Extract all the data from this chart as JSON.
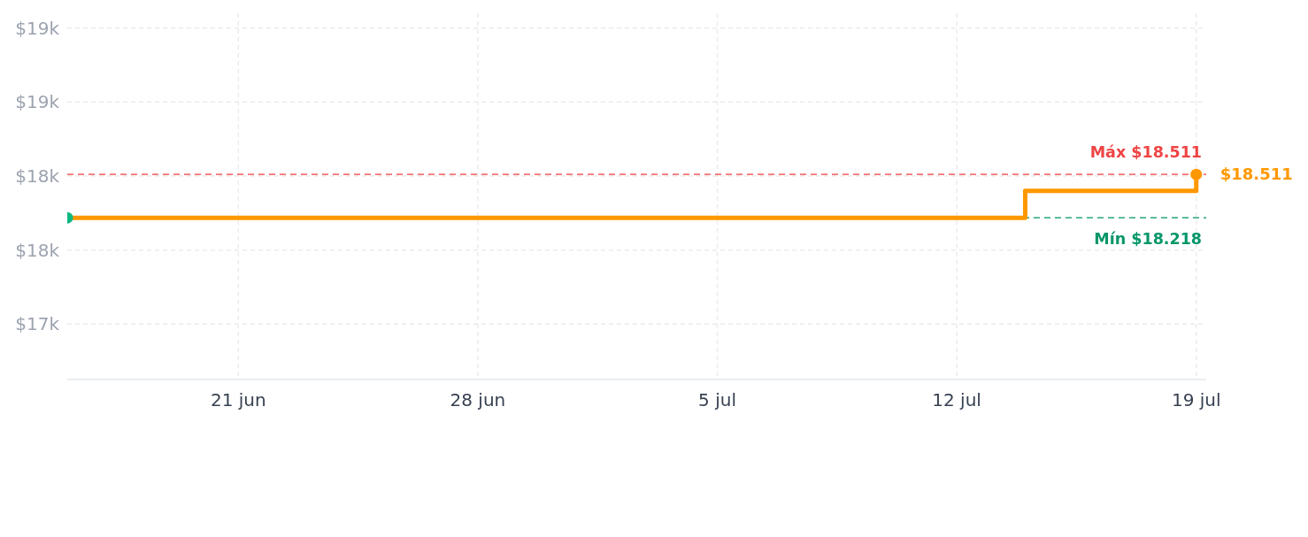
{
  "chart_data": {
    "type": "step",
    "x": [
      "--06-16",
      "--07-14",
      "--07-19"
    ],
    "series": [
      {
        "color": "#ff9800",
        "values": [
          18218,
          18400,
          18511
        ]
      },
      {
        "type": "scatter",
        "x": [
          "--06-16",
          "--07-19"
        ],
        "values": [
          18218,
          18511
        ],
        "colors": [
          "#10b981",
          "#ff9800"
        ],
        "value_labels": [
          null,
          "$18.511"
        ]
      }
    ],
    "xlim": [
      "--06-16",
      "--07-19T07:00"
    ],
    "xticks": [
      {
        "value": "--06-21",
        "label": "21 jun"
      },
      {
        "value": "--06-28",
        "label": "28 jun"
      },
      {
        "value": "--07-05",
        "label": "5 jul"
      },
      {
        "value": "--07-12",
        "label": "12 jul"
      },
      {
        "value": "--07-19",
        "label": "19 jul"
      }
    ],
    "ylim": [
      17125,
      19600
    ],
    "yticks": [
      {
        "value": 17500,
        "label": "$17k"
      },
      {
        "value": 18000,
        "label": "$18k"
      },
      {
        "value": 18500,
        "label": "$18k"
      },
      {
        "value": 19000,
        "label": "$19k"
      },
      {
        "value": 19500,
        "label": "$19k"
      }
    ],
    "grid": true,
    "ref_lines": [
      {
        "axis": "y",
        "value": 18511,
        "label": "Máx $18.511",
        "color": "#ef4444",
        "line_style": "dashed"
      },
      {
        "axis": "y",
        "value": 18218,
        "label": "Mín $18.218",
        "color": "#059669",
        "line_style": "dashed"
      }
    ]
  }
}
